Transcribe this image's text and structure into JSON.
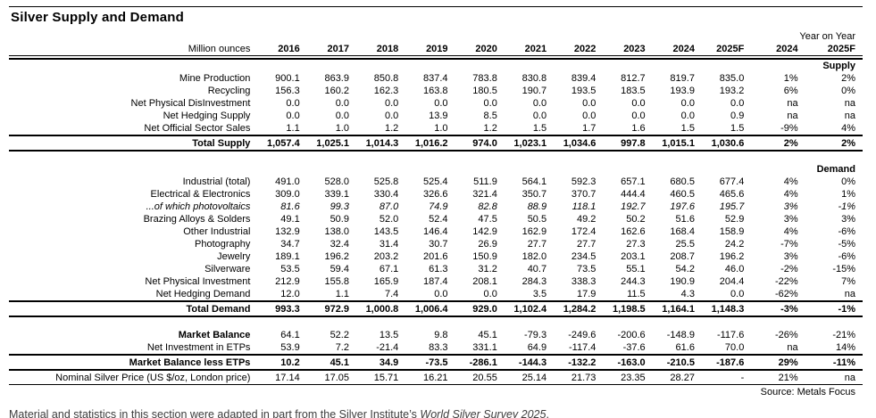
{
  "title": "Silver Supply and Demand",
  "unit_label": "Million ounces",
  "yoy_label": "Year on Year",
  "columns": [
    "2016",
    "2017",
    "2018",
    "2019",
    "2020",
    "2021",
    "2022",
    "2023",
    "2024",
    "2025F"
  ],
  "yoy_columns": [
    "2024",
    "2025F"
  ],
  "colors": {
    "background": "#ffffff",
    "text": "#000000",
    "footnote_text": "#3d3d3d",
    "rule": "#000000"
  },
  "rows": [
    {
      "type": "section",
      "label": "Supply"
    },
    {
      "type": "data",
      "label": "Mine Production",
      "values": [
        "900.1",
        "863.9",
        "850.8",
        "837.4",
        "783.8",
        "830.8",
        "839.4",
        "812.7",
        "819.7",
        "835.0"
      ],
      "yoy": [
        "1%",
        "2%"
      ]
    },
    {
      "type": "data",
      "label": "Recycling",
      "values": [
        "156.3",
        "160.2",
        "162.3",
        "163.8",
        "180.5",
        "190.7",
        "193.5",
        "183.5",
        "193.9",
        "193.2"
      ],
      "yoy": [
        "6%",
        "0%"
      ]
    },
    {
      "type": "data",
      "label": "Net Physical DisInvestment",
      "values": [
        "0.0",
        "0.0",
        "0.0",
        "0.0",
        "0.0",
        "0.0",
        "0.0",
        "0.0",
        "0.0",
        "0.0"
      ],
      "yoy": [
        "na",
        "na"
      ]
    },
    {
      "type": "data",
      "label": "Net Hedging Supply",
      "values": [
        "0.0",
        "0.0",
        "0.0",
        "13.9",
        "8.5",
        "0.0",
        "0.0",
        "0.0",
        "0.0",
        "0.9"
      ],
      "yoy": [
        "na",
        "na"
      ]
    },
    {
      "type": "data",
      "label": "Net Official Sector Sales",
      "values": [
        "1.1",
        "1.0",
        "1.2",
        "1.0",
        "1.2",
        "1.5",
        "1.7",
        "1.6",
        "1.5",
        "1.5"
      ],
      "yoy": [
        "-9%",
        "4%"
      ]
    },
    {
      "type": "rule"
    },
    {
      "type": "data",
      "label": "Total Supply",
      "bold": true,
      "values": [
        "1,057.4",
        "1,025.1",
        "1,014.3",
        "1,016.2",
        "974.0",
        "1,023.1",
        "1,034.6",
        "997.8",
        "1,015.1",
        "1,030.6"
      ],
      "yoy": [
        "2%",
        "2%"
      ]
    },
    {
      "type": "rule"
    },
    {
      "type": "spacer"
    },
    {
      "type": "section",
      "label": "Demand"
    },
    {
      "type": "data",
      "label": "Industrial (total)",
      "values": [
        "491.0",
        "528.0",
        "525.8",
        "525.4",
        "511.9",
        "564.1",
        "592.3",
        "657.1",
        "680.5",
        "677.4"
      ],
      "yoy": [
        "4%",
        "0%"
      ]
    },
    {
      "type": "data",
      "label": "Electrical & Electronics",
      "indent": true,
      "values": [
        "309.0",
        "339.1",
        "330.4",
        "326.6",
        "321.4",
        "350.7",
        "370.7",
        "444.4",
        "460.5",
        "465.6"
      ],
      "yoy": [
        "4%",
        "1%"
      ]
    },
    {
      "type": "data",
      "label": "...of which photovoltaics",
      "indent": true,
      "italic": true,
      "values": [
        "81.6",
        "99.3",
        "87.0",
        "74.9",
        "82.8",
        "88.9",
        "118.1",
        "192.7",
        "197.6",
        "195.7"
      ],
      "yoy": [
        "3%",
        "-1%"
      ]
    },
    {
      "type": "data",
      "label": "Brazing Alloys & Solders",
      "indent": true,
      "values": [
        "49.1",
        "50.9",
        "52.0",
        "52.4",
        "47.5",
        "50.5",
        "49.2",
        "50.2",
        "51.6",
        "52.9"
      ],
      "yoy": [
        "3%",
        "3%"
      ]
    },
    {
      "type": "data",
      "label": "Other Industrial",
      "indent": true,
      "values": [
        "132.9",
        "138.0",
        "143.5",
        "146.4",
        "142.9",
        "162.9",
        "172.4",
        "162.6",
        "168.4",
        "158.9"
      ],
      "yoy": [
        "4%",
        "-6%"
      ]
    },
    {
      "type": "data",
      "label": "Photography",
      "values": [
        "34.7",
        "32.4",
        "31.4",
        "30.7",
        "26.9",
        "27.7",
        "27.7",
        "27.3",
        "25.5",
        "24.2"
      ],
      "yoy": [
        "-7%",
        "-5%"
      ]
    },
    {
      "type": "data",
      "label": "Jewelry",
      "values": [
        "189.1",
        "196.2",
        "203.2",
        "201.6",
        "150.9",
        "182.0",
        "234.5",
        "203.1",
        "208.7",
        "196.2"
      ],
      "yoy": [
        "3%",
        "-6%"
      ]
    },
    {
      "type": "data",
      "label": "Silverware",
      "values": [
        "53.5",
        "59.4",
        "67.1",
        "61.3",
        "31.2",
        "40.7",
        "73.5",
        "55.1",
        "54.2",
        "46.0"
      ],
      "yoy": [
        "-2%",
        "-15%"
      ]
    },
    {
      "type": "data",
      "label": "Net Physical Investment",
      "values": [
        "212.9",
        "155.8",
        "165.9",
        "187.4",
        "208.1",
        "284.3",
        "338.3",
        "244.3",
        "190.9",
        "204.4"
      ],
      "yoy": [
        "-22%",
        "7%"
      ]
    },
    {
      "type": "data",
      "label": "Net Hedging Demand",
      "values": [
        "12.0",
        "1.1",
        "7.4",
        "0.0",
        "0.0",
        "3.5",
        "17.9",
        "11.5",
        "4.3",
        "0.0"
      ],
      "yoy": [
        "-62%",
        "na"
      ]
    },
    {
      "type": "rule"
    },
    {
      "type": "data",
      "label": "Total Demand",
      "bold": true,
      "values": [
        "993.3",
        "972.9",
        "1,000.8",
        "1,006.4",
        "929.0",
        "1,102.4",
        "1,284.2",
        "1,198.5",
        "1,164.1",
        "1,148.3"
      ],
      "yoy": [
        "-3%",
        "-1%"
      ]
    },
    {
      "type": "rule"
    },
    {
      "type": "spacer"
    },
    {
      "type": "data",
      "label": "Market Balance",
      "label_bold": true,
      "values": [
        "64.1",
        "52.2",
        "13.5",
        "9.8",
        "45.1",
        "-79.3",
        "-249.6",
        "-200.6",
        "-148.9",
        "-117.6"
      ],
      "yoy": [
        "-26%",
        "-21%"
      ]
    },
    {
      "type": "data",
      "label": "Net Investment in ETPs",
      "values": [
        "53.9",
        "7.2",
        "-21.4",
        "83.3",
        "331.1",
        "64.9",
        "-117.4",
        "-37.6",
        "61.6",
        "70.0"
      ],
      "yoy": [
        "na",
        "14%"
      ]
    },
    {
      "type": "rule"
    },
    {
      "type": "data",
      "label": "Market Balance less ETPs",
      "bold": true,
      "values": [
        "10.2",
        "45.1",
        "34.9",
        "-73.5",
        "-286.1",
        "-144.3",
        "-132.2",
        "-163.0",
        "-210.5",
        "-187.6"
      ],
      "yoy": [
        "29%",
        "-11%"
      ]
    },
    {
      "type": "rule"
    },
    {
      "type": "data",
      "label": "Nominal Silver Price (US $/oz, London price)",
      "values": [
        "17.14",
        "17.05",
        "15.71",
        "16.21",
        "20.55",
        "25.14",
        "21.73",
        "23.35",
        "28.27",
        "-"
      ],
      "yoy": [
        "21%",
        "na"
      ]
    },
    {
      "type": "rule-thin"
    },
    {
      "type": "source",
      "label": "Source: Metals Focus"
    }
  ],
  "footnote": {
    "prefix": "Material and statistics in this section were adapted in part from the Silver Institute’s ",
    "italic": "World Silver Survey 2025",
    "suffix": "."
  }
}
